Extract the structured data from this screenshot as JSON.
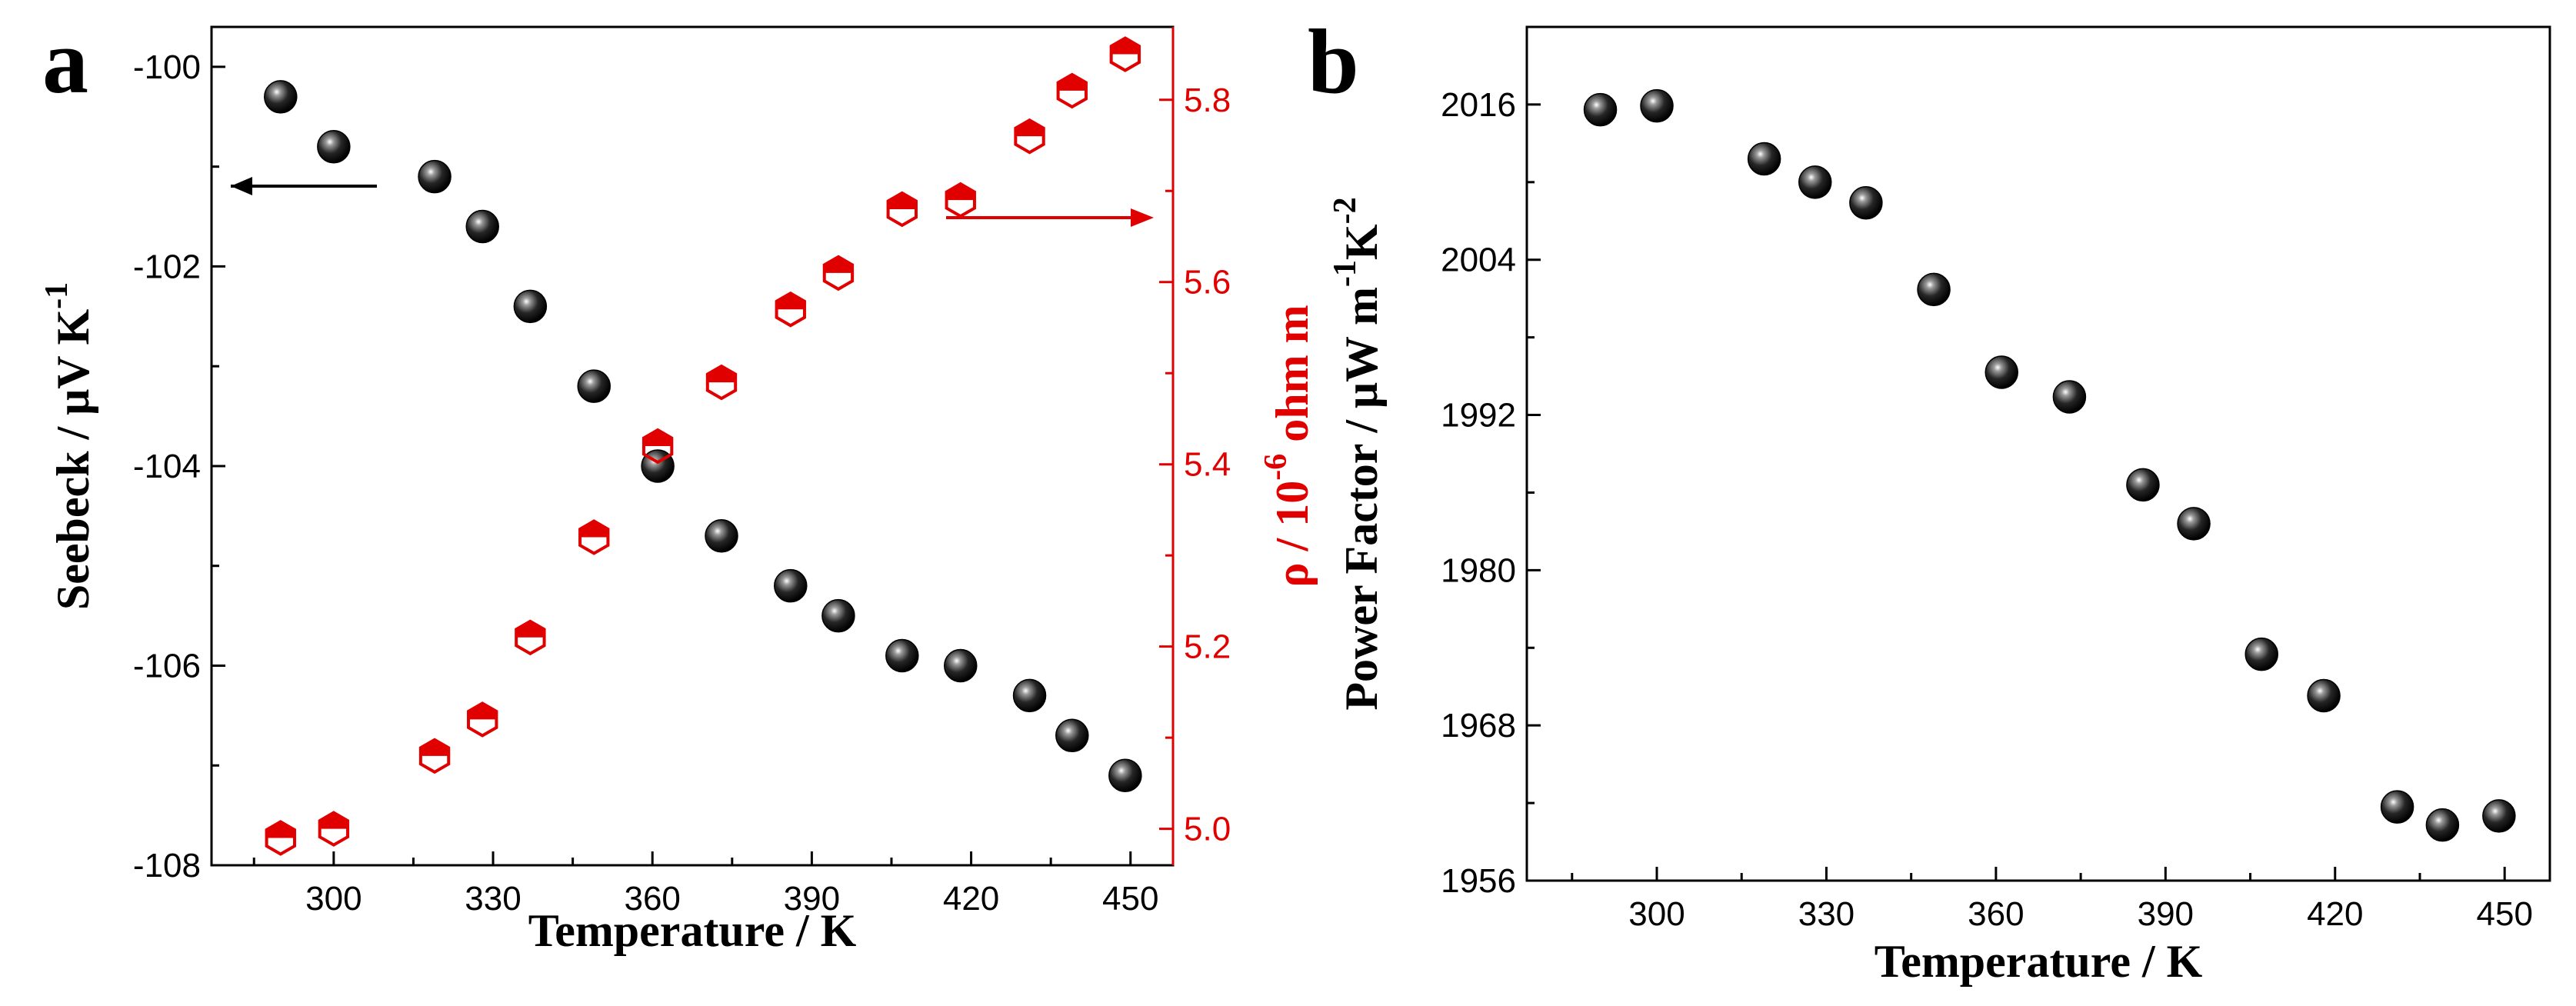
{
  "colors": {
    "seebeck": "#111111",
    "resistivity": "#e00000",
    "axis": "#000000",
    "resistivity_axis": "#e00000"
  },
  "chart_data": [
    {
      "type": "scatter",
      "panel_label": "a",
      "xlabel": "Temperature / K",
      "xlim": [
        277,
        458
      ],
      "xticks": [
        "300",
        "330",
        "360",
        "390",
        "420",
        "450"
      ],
      "y_left": {
        "label_main": "Seebeck / μV K",
        "label_sup": "-1",
        "lim": [
          -108,
          -99.6
        ],
        "ticks": [
          "-100",
          "-102",
          "-104",
          "-106",
          "-108"
        ]
      },
      "y_right": {
        "label_main": "ρ / 10",
        "label_sup": "-6",
        "label_tail": " ohm m",
        "lim": [
          4.96,
          5.88
        ],
        "ticks": [
          "5.0",
          "5.2",
          "5.4",
          "5.6",
          "5.8"
        ]
      },
      "series": [
        {
          "name": "Seebeck",
          "axis": "left",
          "marker": "sphere",
          "x": [
            290,
            300,
            319,
            328,
            337,
            349,
            361,
            373,
            386,
            395,
            407,
            418,
            431,
            439,
            449
          ],
          "y": [
            -100.3,
            -100.8,
            -101.1,
            -101.6,
            -102.4,
            -103.2,
            -104.0,
            -104.7,
            -105.2,
            -105.5,
            -105.9,
            -106.0,
            -106.3,
            -106.7,
            -107.1
          ]
        },
        {
          "name": "Resistivity",
          "axis": "right",
          "marker": "half-filled-hexagon",
          "x": [
            290,
            300,
            319,
            328,
            337,
            349,
            361,
            373,
            386,
            395,
            407,
            418,
            431,
            439,
            449
          ],
          "y": [
            4.99,
            5.0,
            5.08,
            5.12,
            5.21,
            5.32,
            5.42,
            5.49,
            5.57,
            5.61,
            5.68,
            5.69,
            5.76,
            5.81,
            5.85
          ]
        }
      ],
      "annotations": [
        "left arrow → Seebeck axis",
        "right arrow → resistivity axis"
      ]
    },
    {
      "type": "scatter",
      "panel_label": "b",
      "xlabel": "Temperature / K",
      "xlim": [
        277,
        458
      ],
      "xticks": [
        "300",
        "330",
        "360",
        "390",
        "420",
        "450"
      ],
      "y_left": {
        "label_main": "Power Factor / μW m",
        "label_sup1": "-1",
        "label_mid": "K",
        "label_sup2": "-2",
        "lim": [
          1956,
          2022
        ],
        "ticks": [
          "1956",
          "1968",
          "1980",
          "1992",
          "2004",
          "2016"
        ]
      },
      "series": [
        {
          "name": "Power Factor",
          "marker": "sphere",
          "x": [
            290,
            300,
            319,
            328,
            337,
            349,
            361,
            373,
            386,
            395,
            407,
            418,
            431,
            439,
            449
          ],
          "y": [
            2015.6,
            2015.9,
            2011.8,
            2010.0,
            2008.4,
            2001.7,
            1995.3,
            1993.4,
            1986.6,
            1983.6,
            1973.5,
            1970.3,
            1961.7,
            1960.3,
            1961.0
          ]
        }
      ]
    }
  ]
}
